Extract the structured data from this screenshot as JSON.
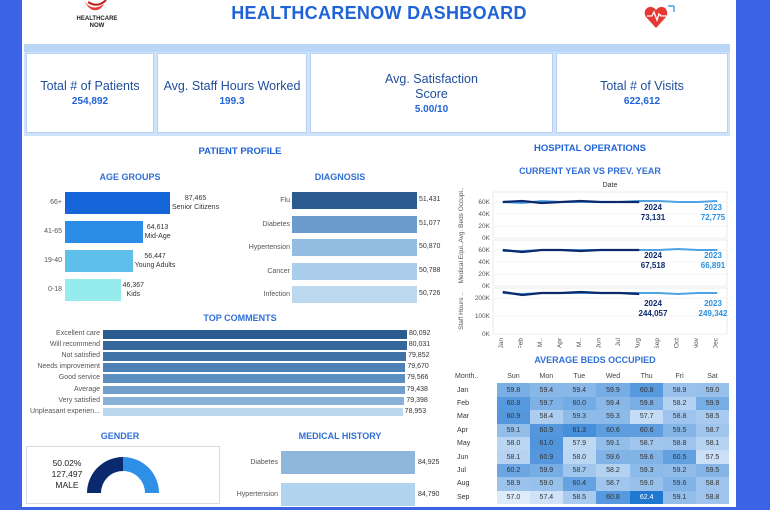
{
  "header": {
    "title": "HEALTHCARENOW  DASHBOARD",
    "logo_text_line1": "HEALTHCARE",
    "logo_text_line2": "NOW"
  },
  "kpis": [
    {
      "label": "Total # of Patients",
      "value": "254,892"
    },
    {
      "label": "Avg. Staff Hours Worked",
      "value": "199.3"
    },
    {
      "label": "Avg. Satisfaction Score",
      "value": "5.00/10"
    },
    {
      "label": "Total # of Visits",
      "value": "622,612"
    }
  ],
  "patient_profile": {
    "title": "PATIENT PROFILE",
    "age_groups": {
      "title": "AGE GROUPS",
      "items": [
        {
          "label": "66+",
          "value": "87,465",
          "sub": "Senior Citizens",
          "v": 87465,
          "color": "#1565d8"
        },
        {
          "label": "41-65",
          "value": "64,613",
          "sub": "Mid-Age",
          "v": 64613,
          "color": "#2c8de6"
        },
        {
          "label": "19-40",
          "value": "56,447",
          "sub": "Young Adults",
          "v": 56447,
          "color": "#5ec0ea"
        },
        {
          "label": "0-18",
          "value": "46,367",
          "sub": "Kids",
          "v": 46367,
          "color": "#96ecec"
        }
      ]
    },
    "diagnosis": {
      "title": "DIAGNOSIS",
      "items": [
        {
          "label": "Flu",
          "value": "51,431",
          "color": "#2a5a8f"
        },
        {
          "label": "Diabetes",
          "value": "51,077",
          "color": "#6a9bcc"
        },
        {
          "label": "Hypertension",
          "value": "50,870",
          "color": "#93bde0"
        },
        {
          "label": "Cancer",
          "value": "50,788",
          "color": "#a9cdea"
        },
        {
          "label": "Infection",
          "value": "50,726",
          "color": "#bcd9f0"
        }
      ]
    },
    "top_comments": {
      "title": "TOP COMMENTS",
      "items": [
        {
          "label": "Excellent care",
          "value": "80,092",
          "v": 80092,
          "color": "#2b5c90"
        },
        {
          "label": "Will recommend",
          "value": "80,031",
          "v": 80031,
          "color": "#34679c"
        },
        {
          "label": "Not satisfied",
          "value": "79,852",
          "v": 79852,
          "color": "#3f73a8"
        },
        {
          "label": "Needs improvement",
          "value": "79,670",
          "v": 79670,
          "color": "#4d80b4"
        },
        {
          "label": "Good service",
          "value": "79,566",
          "v": 79566,
          "color": "#5d8ec0"
        },
        {
          "label": "Average",
          "value": "79,438",
          "v": 79438,
          "color": "#719ecb"
        },
        {
          "label": "Very satisfied",
          "value": "79,398",
          "v": 79398,
          "color": "#8ab1d7"
        },
        {
          "label": "Unpleasant experien...",
          "value": "78,953",
          "v": 78953,
          "color": "#bcd8ee"
        }
      ]
    },
    "gender": {
      "title": "GENDER",
      "male_pct": "50.02%",
      "male_count": "127,497",
      "male_label": "MALE",
      "male_share": 0.5002
    },
    "medical_history": {
      "title": "MEDICAL HISTORY",
      "items": [
        {
          "label": "Diabetes",
          "value": "84,925",
          "color": "#8fb7dc"
        },
        {
          "label": "Hypertension",
          "value": "84,790",
          "color": "#b3d4ef"
        }
      ]
    }
  },
  "hospital_operations": {
    "title": "HOSPITAL OPERATIONS",
    "trend_title": "CURRENT YEAR VS PREV. YEAR",
    "x_header": "Date",
    "months": [
      "Jan",
      "Feb",
      "M..",
      "Apr",
      "M..",
      "Jun",
      "Jul",
      "Aug",
      "Sep",
      "Oct",
      "Nov",
      "Dec"
    ],
    "panels": [
      {
        "axis_label": "Avg. Beds Occupi..",
        "ticks": [
          "60K",
          "40K",
          "20K",
          "0K"
        ],
        "cur_label": "2024",
        "cur_value": "73,131",
        "prev_label": "2023",
        "prev_value": "72,775"
      },
      {
        "axis_label": "Medical Equi..",
        "ticks": [
          "60K",
          "40K",
          "20K",
          "0K"
        ],
        "cur_label": "2024",
        "cur_value": "67,518",
        "prev_label": "2023",
        "prev_value": "66,891"
      },
      {
        "axis_label": "Staff Hours ..",
        "ticks": [
          "200K",
          "100K",
          "0K"
        ],
        "cur_label": "2024",
        "cur_value": "244,057",
        "prev_label": "2023",
        "prev_value": "249,342"
      }
    ],
    "beds": {
      "title": "AVERAGE BEDS OCCUPIED",
      "col_header": "Month..",
      "days": [
        "Sun",
        "Mon",
        "Tue",
        "Wed",
        "Thu",
        "Fri",
        "Sat"
      ],
      "rows": [
        {
          "m": "Jan",
          "v": [
            "59.8",
            "59.4",
            "59.4",
            "59.9",
            "60.8",
            "58.9",
            "59.0"
          ]
        },
        {
          "m": "Feb",
          "v": [
            "60.8",
            "59.7",
            "60.0",
            "59.4",
            "59.8",
            "58.2",
            "59.9"
          ]
        },
        {
          "m": "Mar",
          "v": [
            "60.9",
            "58.4",
            "59.3",
            "59.3",
            "57.7",
            "58.8",
            "58.5"
          ]
        },
        {
          "m": "Apr",
          "v": [
            "59.1",
            "60.9",
            "61.3",
            "60.6",
            "60.6",
            "59.5",
            "58.7"
          ]
        },
        {
          "m": "May",
          "v": [
            "58.0",
            "61.0",
            "57.9",
            "59.1",
            "58.7",
            "58.8",
            "58.1"
          ]
        },
        {
          "m": "Jun",
          "v": [
            "58.1",
            "60.9",
            "58.0",
            "59.6",
            "59.6",
            "60.5",
            "57.5"
          ]
        },
        {
          "m": "Jul",
          "v": [
            "60.2",
            "59.9",
            "58.7",
            "58.2",
            "59.3",
            "59.2",
            "59.5"
          ]
        },
        {
          "m": "Aug",
          "v": [
            "58.9",
            "59.0",
            "60.4",
            "58.7",
            "59.0",
            "59.6",
            "58.8"
          ]
        },
        {
          "m": "Sep",
          "v": [
            "57.0",
            "57.4",
            "58.5",
            "60.8",
            "62.4",
            "59.1",
            "58.8"
          ]
        }
      ]
    }
  },
  "colors": {
    "accent": "#3a63e6",
    "title": "#1f63d6",
    "current_year_line": "#0b2a6e",
    "prev_year_line": "#4fa3e3"
  }
}
